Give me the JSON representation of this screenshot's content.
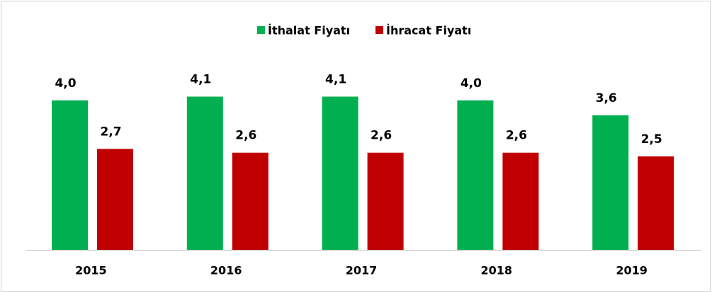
{
  "chart_data": {
    "type": "bar",
    "categories": [
      "2015",
      "2016",
      "2017",
      "2018",
      "2019"
    ],
    "series": [
      {
        "name": "İthalat Fiyatı",
        "color": "#00b050",
        "values": [
          4.0,
          4.1,
          4.1,
          4.0,
          3.6
        ],
        "value_labels": [
          "4,0",
          "4,1",
          "4,1",
          "4,0",
          "3,6"
        ]
      },
      {
        "name": "İhracat Fiyatı",
        "color": "#c00000",
        "values": [
          2.7,
          2.6,
          2.6,
          2.6,
          2.5
        ],
        "value_labels": [
          "2,7",
          "2,6",
          "2,6",
          "2,6",
          "2,5"
        ]
      }
    ],
    "ylim": [
      0,
      5
    ],
    "legend": "top"
  }
}
